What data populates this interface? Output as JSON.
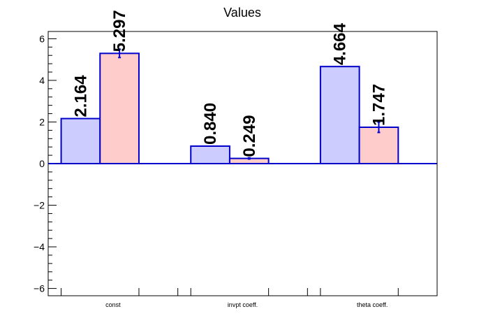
{
  "chart_data": {
    "type": "bar",
    "title": "Values",
    "xlabel": "",
    "ylabel": "",
    "categories": [
      "const",
      "invpt coeff.",
      "theta coeff."
    ],
    "series": [
      {
        "values": [
          2.164,
          0.84,
          4.664
        ],
        "errors": [
          0.0,
          0.0,
          0.0
        ],
        "labels": [
          "2.164",
          "0.840",
          "4.664"
        ],
        "fill": "#ccccff",
        "stroke": "#0000cc"
      },
      {
        "values": [
          5.297,
          0.249,
          1.747
        ],
        "errors": [
          0.2,
          0.03,
          0.25
        ],
        "labels": [
          "5.297",
          "0.249",
          "1.747"
        ],
        "fill": "#ffcccc",
        "stroke": "#0000cc"
      }
    ],
    "ylim": [
      -6.35,
      6.35
    ],
    "yticks": [
      {
        "value": -6,
        "label": "−6"
      },
      {
        "value": -4,
        "label": "−4"
      },
      {
        "value": -2,
        "label": "−2"
      },
      {
        "value": 0,
        "label": "0"
      },
      {
        "value": 2,
        "label": "2"
      },
      {
        "value": 4,
        "label": "4"
      },
      {
        "value": 6,
        "label": "6"
      }
    ],
    "grid": false,
    "legend": "none"
  }
}
